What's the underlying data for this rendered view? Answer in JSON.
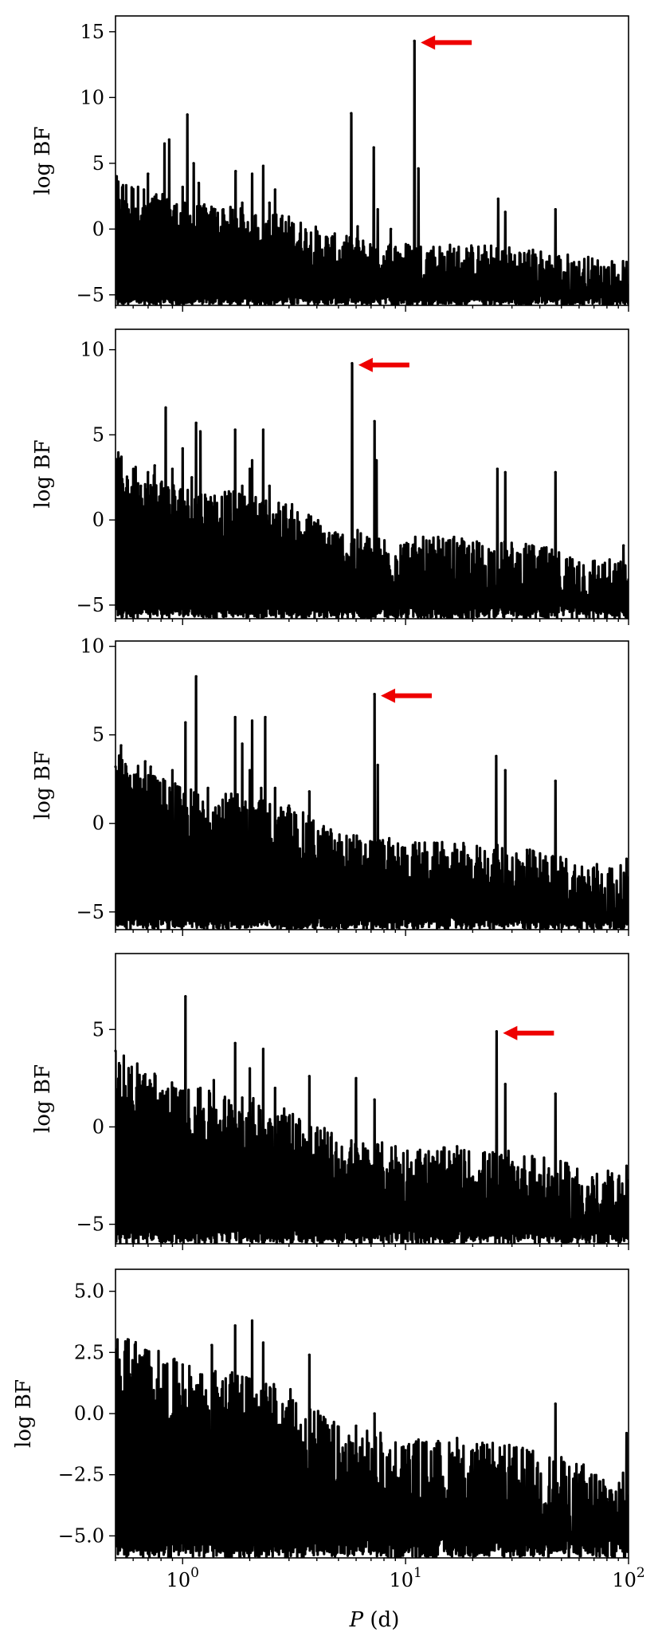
{
  "chart_data": {
    "type": "line",
    "xlabel": "P (d)",
    "xscale": "log",
    "xlim": [
      0.5,
      100
    ],
    "xticks": [
      {
        "value": 1,
        "base": "10",
        "exp": "0"
      },
      {
        "value": 10,
        "base": "10",
        "exp": "1"
      },
      {
        "value": 100,
        "base": "10",
        "exp": "2"
      }
    ],
    "marker_color": "#ee0000",
    "line_color": "#000000",
    "panels": [
      {
        "ylabel": "log BF",
        "ylim": [
          -5.8,
          16.2
        ],
        "yticks": [
          {
            "v": -5,
            "t": "−5"
          },
          {
            "v": 0,
            "t": "0"
          },
          {
            "v": 5,
            "t": "5"
          },
          {
            "v": 10,
            "t": "10"
          },
          {
            "v": 15,
            "t": "15"
          }
        ],
        "marked_peak": {
          "period": 10.95,
          "log_bf": 14.3
        },
        "peaks": [
          [
            0.52,
            2.2
          ],
          [
            0.58,
            1.0
          ],
          [
            0.62,
            1.5
          ],
          [
            0.67,
            3.0
          ],
          [
            0.7,
            4.2
          ],
          [
            0.78,
            2.0
          ],
          [
            0.83,
            6.5
          ],
          [
            0.87,
            6.8
          ],
          [
            0.93,
            1.2
          ],
          [
            1.0,
            3.2
          ],
          [
            1.05,
            8.7
          ],
          [
            1.12,
            5.0
          ],
          [
            1.18,
            3.5
          ],
          [
            1.4,
            1.5
          ],
          [
            1.52,
            1.5
          ],
          [
            1.73,
            4.4
          ],
          [
            1.85,
            2.0
          ],
          [
            2.05,
            4.2
          ],
          [
            2.3,
            4.8
          ],
          [
            2.45,
            2.0
          ],
          [
            2.6,
            3.0
          ],
          [
            2.8,
            1.0
          ],
          [
            5.7,
            8.8
          ],
          [
            6.1,
            0.2
          ],
          [
            7.2,
            6.2
          ],
          [
            7.5,
            1.5
          ],
          [
            8.6,
            0.0
          ],
          [
            10.95,
            14.3
          ],
          [
            11.4,
            4.6
          ],
          [
            16.5,
            -1.5
          ],
          [
            19.0,
            -1.8
          ],
          [
            22.0,
            -2.0
          ],
          [
            26.0,
            2.3
          ],
          [
            28.0,
            1.3
          ],
          [
            37.0,
            -2.0
          ],
          [
            47.0,
            1.5
          ],
          [
            60.0,
            -2.5
          ],
          [
            72.0,
            -3.6
          ],
          [
            90.0,
            -3.5
          ],
          [
            98.0,
            -2.5
          ]
        ],
        "baseline": [
          [
            0.5,
            1.5
          ],
          [
            1.0,
            -0.5
          ],
          [
            2.0,
            -1.0
          ],
          [
            3.0,
            -1.5
          ],
          [
            5.0,
            -3.0
          ],
          [
            10.0,
            -3.5
          ],
          [
            30.0,
            -3.8
          ],
          [
            60.0,
            -4.5
          ],
          [
            100.0,
            -5.0
          ]
        ]
      },
      {
        "ylabel": "log BF",
        "ylim": [
          -5.8,
          11.2
        ],
        "yticks": [
          {
            "v": -5,
            "t": "−5"
          },
          {
            "v": 0,
            "t": "0"
          },
          {
            "v": 5,
            "t": "5"
          },
          {
            "v": 10,
            "t": "10"
          }
        ],
        "marked_peak": {
          "period": 5.75,
          "log_bf": 9.2
        },
        "peaks": [
          [
            0.52,
            3.6
          ],
          [
            0.58,
            1.5
          ],
          [
            0.65,
            2.0
          ],
          [
            0.7,
            2.8
          ],
          [
            0.75,
            3.2
          ],
          [
            0.84,
            6.6
          ],
          [
            0.9,
            3.0
          ],
          [
            1.0,
            4.2
          ],
          [
            1.1,
            2.5
          ],
          [
            1.15,
            5.7
          ],
          [
            1.2,
            5.2
          ],
          [
            1.35,
            1.0
          ],
          [
            1.72,
            5.3
          ],
          [
            1.85,
            2.0
          ],
          [
            2.0,
            3.0
          ],
          [
            2.05,
            3.5
          ],
          [
            2.3,
            5.3
          ],
          [
            2.45,
            2.0
          ],
          [
            2.7,
            1.0
          ],
          [
            3.6,
            0.0
          ],
          [
            5.75,
            9.2
          ],
          [
            7.25,
            5.8
          ],
          [
            7.4,
            3.5
          ],
          [
            9.5,
            -1.5
          ],
          [
            14.0,
            -1.0
          ],
          [
            16.5,
            -1.0
          ],
          [
            25.8,
            3.0
          ],
          [
            28.0,
            2.8
          ],
          [
            37.0,
            -1.5
          ],
          [
            47.0,
            2.8
          ],
          [
            60.0,
            -2.5
          ],
          [
            75.0,
            -3.5
          ],
          [
            95.0,
            -1.5
          ]
        ],
        "baseline": [
          [
            0.5,
            1.5
          ],
          [
            1.0,
            -0.5
          ],
          [
            2.0,
            -1.0
          ],
          [
            3.0,
            -1.5
          ],
          [
            5.0,
            -3.0
          ],
          [
            10.0,
            -3.5
          ],
          [
            30.0,
            -3.8
          ],
          [
            60.0,
            -4.5
          ],
          [
            100.0,
            -5.0
          ]
        ]
      },
      {
        "ylabel": "log BF",
        "ylim": [
          -6.0,
          10.3
        ],
        "yticks": [
          {
            "v": -5,
            "t": "−5"
          },
          {
            "v": 0,
            "t": "0"
          },
          {
            "v": 5,
            "t": "5"
          },
          {
            "v": 10,
            "t": "10"
          }
        ],
        "marked_peak": {
          "period": 7.25,
          "log_bf": 7.3
        },
        "peaks": [
          [
            0.5,
            3.2
          ],
          [
            0.53,
            4.4
          ],
          [
            0.6,
            1.2
          ],
          [
            0.68,
            3.5
          ],
          [
            0.72,
            3.2
          ],
          [
            0.8,
            1.0
          ],
          [
            0.9,
            3.0
          ],
          [
            1.03,
            5.7
          ],
          [
            1.15,
            8.3
          ],
          [
            1.3,
            2.0
          ],
          [
            1.72,
            6.0
          ],
          [
            1.85,
            4.5
          ],
          [
            2.0,
            3.0
          ],
          [
            2.05,
            5.8
          ],
          [
            2.25,
            2.0
          ],
          [
            2.35,
            6.0
          ],
          [
            2.6,
            2.0
          ],
          [
            3.0,
            1.0
          ],
          [
            3.7,
            1.8
          ],
          [
            7.25,
            7.3
          ],
          [
            7.5,
            3.3
          ],
          [
            17.0,
            -1.5
          ],
          [
            19.0,
            -1.8
          ],
          [
            25.5,
            3.8
          ],
          [
            28.0,
            3.0
          ],
          [
            35.0,
            -1.5
          ],
          [
            47.0,
            2.4
          ],
          [
            60.0,
            -3.0
          ],
          [
            75.0,
            -3.5
          ],
          [
            98.0,
            -2.0
          ]
        ],
        "baseline": [
          [
            0.5,
            1.5
          ],
          [
            1.0,
            -0.5
          ],
          [
            2.0,
            -1.0
          ],
          [
            3.0,
            -1.5
          ],
          [
            5.0,
            -3.0
          ],
          [
            10.0,
            -3.5
          ],
          [
            30.0,
            -3.8
          ],
          [
            60.0,
            -4.5
          ],
          [
            100.0,
            -5.0
          ]
        ]
      },
      {
        "ylabel": "log BF",
        "ylim": [
          -6.0,
          8.9
        ],
        "yticks": [
          {
            "v": -5,
            "t": "−5"
          },
          {
            "v": 0,
            "t": "0"
          },
          {
            "v": 5,
            "t": "5"
          }
        ],
        "marked_peak": {
          "period": 25.6,
          "log_bf": 4.9
        },
        "peaks": [
          [
            0.5,
            3.9
          ],
          [
            0.55,
            1.2
          ],
          [
            0.62,
            2.0
          ],
          [
            0.68,
            2.7
          ],
          [
            0.72,
            2.2
          ],
          [
            0.78,
            1.0
          ],
          [
            0.95,
            1.5
          ],
          [
            1.03,
            6.7
          ],
          [
            1.2,
            2.0
          ],
          [
            1.38,
            2.4
          ],
          [
            1.72,
            4.3
          ],
          [
            1.85,
            1.5
          ],
          [
            2.0,
            3.0
          ],
          [
            2.3,
            4.0
          ],
          [
            2.6,
            2.0
          ],
          [
            3.0,
            0.5
          ],
          [
            3.7,
            2.6
          ],
          [
            6.0,
            2.5
          ],
          [
            7.25,
            1.4
          ],
          [
            9.0,
            -1.0
          ],
          [
            12.0,
            -2.0
          ],
          [
            17.0,
            -1.0
          ],
          [
            25.6,
            4.9
          ],
          [
            28.0,
            2.2
          ],
          [
            37.0,
            -1.5
          ],
          [
            47.0,
            1.7
          ],
          [
            60.0,
            -3.0
          ],
          [
            75.0,
            -4.0
          ],
          [
            98.0,
            -2.0
          ]
        ],
        "baseline": [
          [
            0.5,
            1.5
          ],
          [
            1.0,
            -0.5
          ],
          [
            2.0,
            -1.0
          ],
          [
            3.0,
            -1.5
          ],
          [
            5.0,
            -3.0
          ],
          [
            10.0,
            -3.5
          ],
          [
            30.0,
            -3.8
          ],
          [
            60.0,
            -4.5
          ],
          [
            100.0,
            -5.0
          ]
        ]
      },
      {
        "ylabel": "log BF",
        "ylim": [
          -5.9,
          5.9
        ],
        "yticks": [
          {
            "v": -5,
            "t": "−5.0"
          },
          {
            "v": -2.5,
            "t": "−2.5"
          },
          {
            "v": 0,
            "t": "0.0"
          },
          {
            "v": 2.5,
            "t": "2.5"
          },
          {
            "v": 5,
            "t": "5.0"
          }
        ],
        "peaks": [
          [
            0.52,
            2.2
          ],
          [
            0.58,
            1.6
          ],
          [
            0.62,
            2.0
          ],
          [
            0.68,
            2.6
          ],
          [
            0.72,
            1.5
          ],
          [
            0.8,
            1.0
          ],
          [
            1.0,
            2.0
          ],
          [
            1.1,
            1.0
          ],
          [
            1.2,
            1.6
          ],
          [
            1.35,
            2.8
          ],
          [
            1.5,
            1.0
          ],
          [
            1.72,
            3.6
          ],
          [
            1.85,
            1.5
          ],
          [
            2.05,
            3.8
          ],
          [
            2.3,
            2.9
          ],
          [
            2.6,
            1.0
          ],
          [
            3.0,
            0.5
          ],
          [
            3.7,
            2.4
          ],
          [
            6.0,
            -0.5
          ],
          [
            7.25,
            0.0
          ],
          [
            10.0,
            -1.5
          ],
          [
            17.0,
            -1.0
          ],
          [
            20.0,
            -1.5
          ],
          [
            25.0,
            -2.0
          ],
          [
            35.0,
            -1.5
          ],
          [
            47.0,
            0.4
          ],
          [
            60.0,
            -2.5
          ],
          [
            80.0,
            -3.5
          ],
          [
            98.0,
            -0.8
          ]
        ],
        "baseline": [
          [
            0.5,
            1.0
          ],
          [
            1.0,
            -0.5
          ],
          [
            2.0,
            -1.0
          ],
          [
            3.0,
            -1.5
          ],
          [
            5.0,
            -3.0
          ],
          [
            10.0,
            -3.5
          ],
          [
            30.0,
            -3.8
          ],
          [
            60.0,
            -4.5
          ],
          [
            100.0,
            -5.0
          ]
        ]
      }
    ]
  }
}
